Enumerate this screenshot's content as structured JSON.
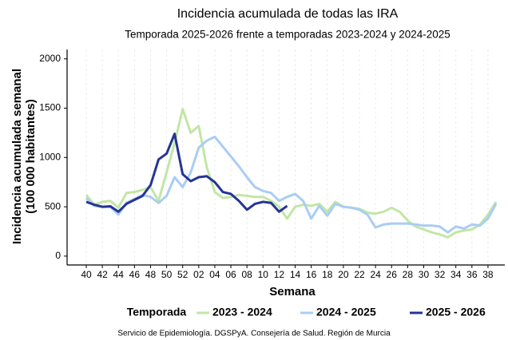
{
  "chart_data": {
    "type": "line",
    "title": "Incidencia acumulada de todas las IRA",
    "subtitle": "Temporada 2025-2026 frente a temporadas 2023-2024 y 2024-2025",
    "xlabel": "Semana",
    "ylabel": [
      "Incidencia acumulada semanal",
      "(100 000 habitantes)"
    ],
    "legend_title": "Temporada",
    "caption": "Servicio de Epidemiología. DGSPyA. Consejería de Salud. Región de Murcia",
    "categories": [
      "40",
      null,
      "42",
      null,
      "44",
      null,
      "46",
      null,
      "48",
      null,
      "50",
      null,
      "52",
      null,
      "02",
      null,
      "04",
      null,
      "06",
      null,
      "08",
      null,
      "10",
      null,
      "12",
      null,
      "14",
      null,
      "16",
      null,
      "18",
      null,
      "20",
      null,
      "22",
      null,
      "24",
      null,
      "26",
      null,
      "28",
      null,
      "30",
      null,
      "32",
      null,
      "34",
      null,
      "36",
      null,
      "38",
      null
    ],
    "ylim": [
      -90,
      2095
    ],
    "yticks": [
      0,
      500,
      1000,
      1500,
      2000
    ],
    "grid": "x",
    "legend": "bottom",
    "series": [
      {
        "name": "2023 - 2024",
        "color": "#c2e6a6",
        "values": [
          620,
          520,
          550,
          560,
          490,
          640,
          650,
          670,
          700,
          560,
          850,
          1150,
          1490,
          1250,
          1320,
          900,
          650,
          590,
          600,
          620,
          610,
          600,
          600,
          560,
          500,
          380,
          500,
          520,
          510,
          530,
          450,
          550,
          500,
          490,
          480,
          440,
          430,
          450,
          490,
          450,
          360,
          300,
          270,
          240,
          220,
          190,
          240,
          260,
          270,
          320,
          420,
          550
        ]
      },
      {
        "name": "2024 - 2025",
        "color": "#a9cdf4",
        "values": [
          590,
          510,
          500,
          500,
          420,
          540,
          580,
          620,
          600,
          540,
          610,
          800,
          700,
          850,
          1100,
          1170,
          1210,
          1110,
          1010,
          910,
          800,
          700,
          660,
          640,
          560,
          600,
          630,
          560,
          380,
          510,
          410,
          530,
          500,
          490,
          470,
          420,
          290,
          320,
          330,
          330,
          330,
          320,
          310,
          310,
          300,
          240,
          300,
          280,
          320,
          310,
          380,
          530
        ]
      },
      {
        "name": "2025 - 2026",
        "color": "#253494",
        "values": [
          550,
          520,
          500,
          505,
          450,
          530,
          570,
          610,
          720,
          980,
          1040,
          1240,
          830,
          760,
          800,
          810,
          750,
          650,
          630,
          560,
          470,
          530,
          550,
          540,
          450,
          510,
          null,
          null,
          null,
          null,
          null,
          null,
          null,
          null,
          null,
          null,
          null,
          null,
          null,
          null,
          null,
          null,
          null,
          null,
          null,
          null,
          null,
          null,
          null,
          null,
          null,
          null
        ]
      }
    ]
  }
}
